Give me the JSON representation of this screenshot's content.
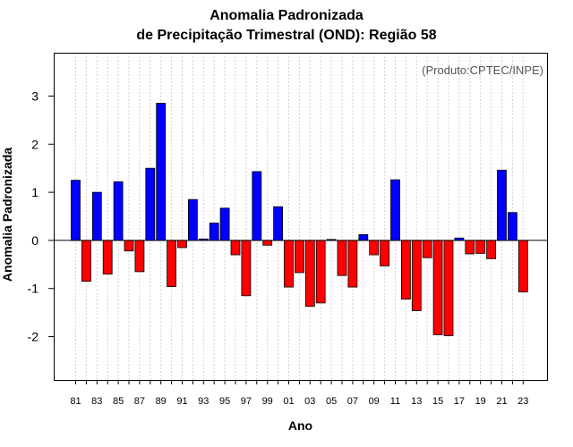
{
  "chart_data": {
    "type": "bar",
    "title": "Anomalia Padronizada",
    "subtitle": "de Precipitação Trimestral (OND): Região 58",
    "xlabel": "Ano",
    "ylabel": "Anomalia Padronizada",
    "credit": "(Produto:CPTEC/INPE)",
    "ylim": [
      -2.9,
      3.9
    ],
    "yticks": [
      -2,
      -1,
      0,
      1,
      2,
      3
    ],
    "categories": [
      "81",
      "82",
      "83",
      "84",
      "85",
      "86",
      "87",
      "88",
      "89",
      "90",
      "91",
      "92",
      "93",
      "94",
      "95",
      "96",
      "97",
      "98",
      "99",
      "00",
      "01",
      "02",
      "03",
      "04",
      "05",
      "06",
      "07",
      "08",
      "09",
      "10",
      "11",
      "12",
      "13",
      "14",
      "15",
      "16",
      "17",
      "18",
      "19",
      "20",
      "21",
      "22",
      "23"
    ],
    "xtick_labels": [
      "81",
      "83",
      "85",
      "87",
      "89",
      "91",
      "93",
      "95",
      "97",
      "99",
      "01",
      "03",
      "05",
      "07",
      "09",
      "11",
      "13",
      "15",
      "17",
      "19",
      "21",
      "23"
    ],
    "values": [
      1.25,
      -0.85,
      1.0,
      -0.7,
      1.22,
      -0.22,
      -0.65,
      1.5,
      2.85,
      -0.96,
      -0.15,
      0.85,
      0.03,
      0.36,
      0.67,
      -0.3,
      -1.15,
      1.43,
      -0.1,
      0.7,
      -0.97,
      -0.67,
      -1.37,
      -1.3,
      0.02,
      -0.73,
      -0.97,
      0.12,
      -0.3,
      -0.53,
      1.26,
      -1.22,
      -1.46,
      -0.36,
      -1.96,
      -1.98,
      0.05,
      -0.28,
      -0.27,
      -0.38,
      1.46,
      0.58,
      -1.07
    ],
    "colors": {
      "positive": "#0000ff",
      "negative": "#ff0000",
      "outline": "#000000",
      "grid": "#d3d3d3"
    },
    "grid": true
  }
}
